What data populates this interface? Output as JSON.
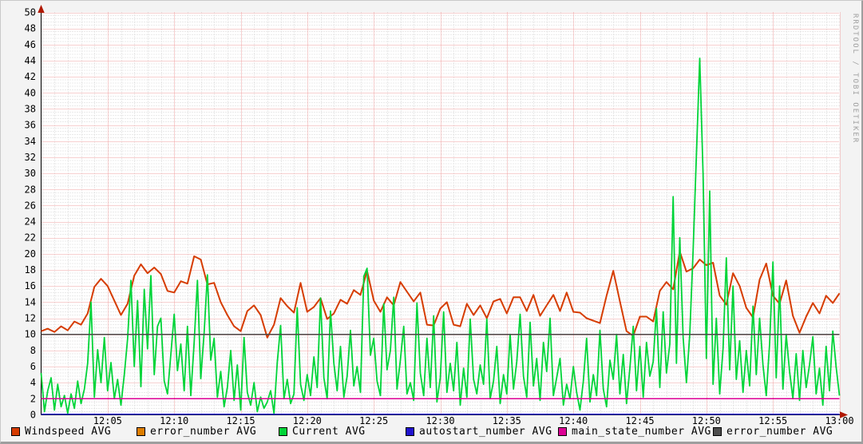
{
  "watermark": "RRDTOOL / TOBI OETIKER",
  "legend": [
    {
      "label": "Windspeed AVG",
      "color": "#d63c00"
    },
    {
      "label": "error_number AVG",
      "color": "#dd7e00"
    },
    {
      "label": "Current AVG",
      "color": "#00d438"
    },
    {
      "label": "autostart_number AVG",
      "color": "#2012cf"
    },
    {
      "label": "main_state_number AVG",
      "color": "#dc0094"
    },
    {
      "label": "error_number AVG",
      "color": "#4d4d4d"
    }
  ],
  "chart_data": {
    "type": "line",
    "title": "",
    "xlabel": "",
    "ylabel": "",
    "ylim": [
      0,
      50
    ],
    "y_tick_step": 2,
    "y_tick_labels": [
      "0",
      "2",
      "4",
      "6",
      "8",
      "10",
      "12",
      "14",
      "16",
      "18",
      "20",
      "22",
      "24",
      "26",
      "28",
      "30",
      "32",
      "34",
      "36",
      "38",
      "40",
      "42",
      "44",
      "46",
      "48",
      "50"
    ],
    "x_span_minutes": 60,
    "x_ticks": [
      {
        "min": 5,
        "label": "12:05"
      },
      {
        "min": 10,
        "label": "12:10"
      },
      {
        "min": 15,
        "label": "12:15"
      },
      {
        "min": 20,
        "label": "12:20"
      },
      {
        "min": 25,
        "label": "12:25"
      },
      {
        "min": 30,
        "label": "12:30"
      },
      {
        "min": 35,
        "label": "12:35"
      },
      {
        "min": 40,
        "label": "12:40"
      },
      {
        "min": 45,
        "label": "12:45"
      },
      {
        "min": 50,
        "label": "12:50"
      },
      {
        "min": 55,
        "label": "12:55"
      },
      {
        "min": 60,
        "label": "13:00"
      }
    ],
    "grid": {
      "x_minor_min": 1,
      "x_major_min": 5,
      "y_minor": 0.4,
      "y_major": 2,
      "minor_color": "#d6d6d6",
      "major_color": "#efa0a0"
    },
    "legend_position": "bottom",
    "series": [
      {
        "name": "Windspeed AVG",
        "color": "#d63c00",
        "width": 2,
        "step_min": 0.5,
        "values": [
          10.4,
          10.7,
          10.3,
          11,
          10.5,
          11.6,
          11.2,
          12.6,
          15.9,
          16.9,
          16,
          14.2,
          12.4,
          13.8,
          17.3,
          18.7,
          17.6,
          18.3,
          17.5,
          15.4,
          15.2,
          16.6,
          16.3,
          19.7,
          19.3,
          16.2,
          16.4,
          14,
          12.4,
          11,
          10.4,
          12.9,
          13.6,
          12.4,
          9.6,
          11.2,
          14.5,
          13.5,
          12.7,
          16.4,
          12.8,
          13.4,
          14.5,
          11.9,
          12.6,
          14.3,
          13.8,
          15.5,
          14.9,
          17.9,
          14.2,
          12.8,
          14.6,
          13.6,
          16.5,
          15.3,
          14.1,
          15.2,
          11.2,
          11.1,
          13.2,
          14,
          11.2,
          11,
          13.8,
          12.4,
          13.6,
          12,
          14.1,
          14.4,
          12.6,
          14.6,
          14.6,
          12.9,
          14.9,
          12.3,
          13.6,
          14.9,
          12.9,
          15.2,
          12.8,
          12.7,
          12,
          11.7,
          11.4,
          14.8,
          17.9,
          14.1,
          10.4,
          9.8,
          12.2,
          12.2,
          11.6,
          15.4,
          16.5,
          15.6,
          20.3,
          17.8,
          18.2,
          19.3,
          18.6,
          18.9,
          14.8,
          13.7,
          17.6,
          16,
          13.3,
          12.1,
          16.8,
          18.8,
          14.8,
          13.8,
          16.7,
          12.3,
          10.2,
          12.2,
          13.9,
          12.6,
          14.8,
          13.9,
          15.1
        ]
      },
      {
        "name": "error_number AVG",
        "color": "#dd7e00",
        "width": 1.6,
        "value": 10
      },
      {
        "name": "Current AVG",
        "color": "#00d438",
        "width": 1.8,
        "step_min": 0.25,
        "values": [
          5.2,
          0.4,
          3,
          4.6,
          0.6,
          3.8,
          1,
          2.4,
          0.2,
          2.6,
          0.8,
          4.2,
          1.4,
          3.2,
          6.4,
          14,
          2.2,
          8.1,
          4,
          9.6,
          3,
          6.5,
          2,
          4.4,
          1.2,
          5,
          9.4,
          16.7,
          6,
          14.2,
          3.5,
          15.6,
          8.2,
          17.3,
          5,
          11,
          12,
          4.2,
          2.6,
          7.5,
          12.5,
          5.5,
          8.8,
          3,
          11,
          2.4,
          9,
          16.7,
          4.5,
          10.2,
          17.4,
          6.8,
          9.5,
          2.2,
          5.4,
          1,
          3.4,
          8,
          1.8,
          6.2,
          0.6,
          9.6,
          2.8,
          1.2,
          4,
          0.4,
          2.2,
          0.8,
          1.6,
          3,
          0.2,
          6.5,
          11.1,
          2,
          4.4,
          1.4,
          2.6,
          13.3,
          3.8,
          1.8,
          5,
          2.4,
          7.2,
          3.4,
          14.5,
          4.6,
          2,
          12.9,
          6.4,
          3,
          8.5,
          2.2,
          4.8,
          10.5,
          3.6,
          6,
          2.8,
          17.2,
          18.2,
          7.4,
          9.5,
          4.2,
          2.4,
          13.8,
          5.6,
          8,
          14.6,
          3.2,
          6.8,
          11,
          2.6,
          4,
          1.8,
          13.9,
          5.2,
          2.4,
          9.5,
          3.4,
          12.3,
          1.6,
          4.6,
          12.8,
          2.8,
          6.4,
          3,
          9,
          1.2,
          5.8,
          2.2,
          11.9,
          4.4,
          2.6,
          6.2,
          3.8,
          11.9,
          2,
          4.2,
          8.5,
          1.4,
          5,
          2.6,
          10,
          3.2,
          6.6,
          12.5,
          4.8,
          2.2,
          11.5,
          3.6,
          7,
          1.8,
          9,
          5.4,
          12,
          2.4,
          4.6,
          7,
          1.2,
          3.8,
          2,
          6,
          2.8,
          0.6,
          4.2,
          9.5,
          1.6,
          5,
          2.4,
          10.5,
          3.2,
          1,
          6.8,
          4.4,
          10,
          2.6,
          7.5,
          1.4,
          5.8,
          11,
          3,
          8.5,
          2.2,
          9,
          4.8,
          6.6,
          13.2,
          3.4,
          12.8,
          5.2,
          8.8,
          27.1,
          6.4,
          22,
          9.6,
          4,
          10,
          20.4,
          32.2,
          44.3,
          29.8,
          7,
          27.8,
          3.8,
          12,
          2.6,
          8.2,
          19.5,
          5.6,
          16,
          4.4,
          9.2,
          2.8,
          8,
          3.6,
          13.5,
          5,
          12,
          6.2,
          2.4,
          8.8,
          19,
          4.6,
          16,
          3.2,
          10,
          5.4,
          2,
          7.6,
          1.8,
          8,
          3.4,
          6.2,
          9.7,
          2.6,
          5.8,
          1.2,
          8.5,
          3,
          10.4,
          6,
          2.4
        ]
      },
      {
        "name": "autostart_number AVG",
        "color": "#2012cf",
        "width": 1.6,
        "value": 0
      },
      {
        "name": "main_state_number AVG",
        "color": "#dc0094",
        "width": 1.8,
        "value": 2
      },
      {
        "name": "error_number AVG",
        "color": "#4d4d4d",
        "width": 1.8,
        "value": 10
      }
    ]
  }
}
